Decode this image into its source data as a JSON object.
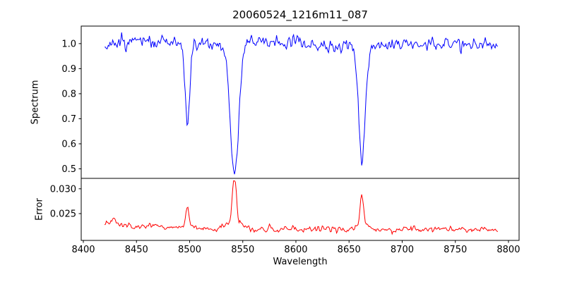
{
  "title": "20060524_1216m11_087",
  "chart_data": {
    "type": "line",
    "title": "20060524_1216m11_087",
    "xlabel": "Wavelength",
    "grid": false,
    "legend": "none",
    "seed": 87,
    "x": {
      "start": 8420,
      "end": 8790,
      "n": 440,
      "lim": [
        8398,
        8810
      ],
      "ticks": [
        8400,
        8450,
        8500,
        8550,
        8600,
        8650,
        8700,
        8750,
        8800
      ],
      "tick_labels": [
        "8400",
        "8450",
        "8500",
        "8550",
        "8600",
        "8650",
        "8700",
        "8750",
        "8800"
      ]
    },
    "panels": [
      {
        "name": "spectrum",
        "ylabel": "Spectrum",
        "ylim": [
          0.462,
          1.07
        ],
        "yticks": [
          0.5,
          0.6,
          0.7,
          0.8,
          0.9,
          1.0
        ],
        "ytick_labels": [
          "0.5",
          "0.6",
          "0.7",
          "0.8",
          "0.9",
          "1.0"
        ],
        "color": "#0000ff",
        "series": {
          "name": "spectrum",
          "continuum": 1.0,
          "noise_sigma": 0.016,
          "undulation": [
            {
              "period": 23,
              "amp": 0.006
            },
            {
              "period": 61,
              "amp": 0.008
            }
          ],
          "absorption_lines": [
            {
              "center": 8498.0,
              "depth": 0.34,
              "sigma": 2.2
            },
            {
              "center": 8542.1,
              "depth": 0.53,
              "sigma": 4.0
            },
            {
              "center": 8662.1,
              "depth": 0.46,
              "sigma": 3.0
            }
          ],
          "clamp_max": 1.064
        }
      },
      {
        "name": "error",
        "ylabel": "Error",
        "ylim": [
          0.0196,
          0.0321
        ],
        "yticks": [
          0.025,
          0.03
        ],
        "ytick_labels": [
          "0.025",
          "0.030"
        ],
        "color": "#ff0000",
        "series": {
          "name": "error",
          "baseline": 0.0218,
          "left_rise": {
            "amp": 0.0012,
            "scale": 60
          },
          "noise_sigma": 0.00035,
          "peaks": [
            {
              "center": 8429.0,
              "amp": 0.0016,
              "sigma": 1.4
            },
            {
              "center": 8466.0,
              "amp": 0.0007,
              "sigma": 2.0
            },
            {
              "center": 8498.0,
              "amp": 0.0043,
              "sigma": 1.6
            },
            {
              "center": 8542.1,
              "amp": 0.0093,
              "sigma": 1.9
            },
            {
              "center": 8542.1,
              "amp": 0.0012,
              "sigma": 7.0
            },
            {
              "center": 8662.1,
              "amp": 0.0062,
              "sigma": 1.7
            },
            {
              "center": 8662.1,
              "amp": 0.0008,
              "sigma": 6.0
            }
          ],
          "clamp_min": 0.02,
          "clamp_max": 0.0316
        }
      }
    ]
  }
}
